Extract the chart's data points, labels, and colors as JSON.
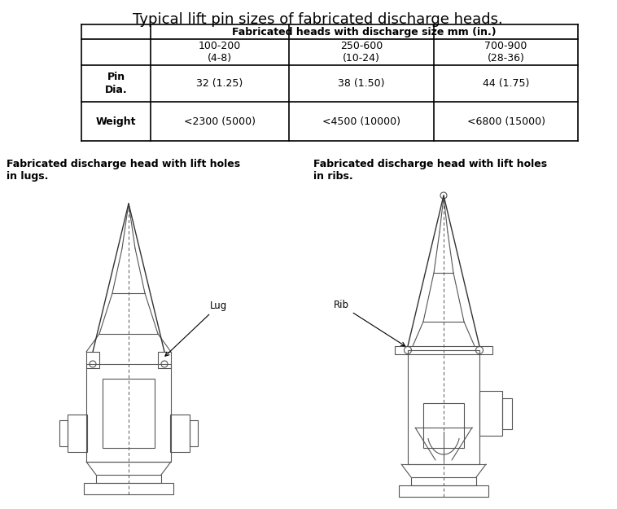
{
  "title": "Typical lift pin sizes of fabricated discharge heads.",
  "table_header": "Fabricated heads with discharge size mm (in.)",
  "col1_header": "100-200\n(4-8)",
  "col2_header": "250-600\n(10-24)",
  "col3_header": "700-900\n(28-36)",
  "row1_label": "Pin\nDia.",
  "row2_label": "Weight",
  "row1_vals": [
    "32 (1.25)",
    "38 (1.50)",
    "44 (1.75)"
  ],
  "row2_vals": [
    "<2300 (5000)",
    "<4500 (10000)",
    "<6800 (15000)"
  ],
  "left_caption1": "Fabricated discharge head with lift holes",
  "left_caption2": "in lugs.",
  "right_caption1": "Fabricated discharge head with lift holes",
  "right_caption2": "in ribs.",
  "lug_label": "Lug",
  "rib_label": "Rib",
  "bg_color": "#ffffff",
  "line_color": "#000000",
  "diagram_line_color": "#555555",
  "table_line_color": "#000000"
}
